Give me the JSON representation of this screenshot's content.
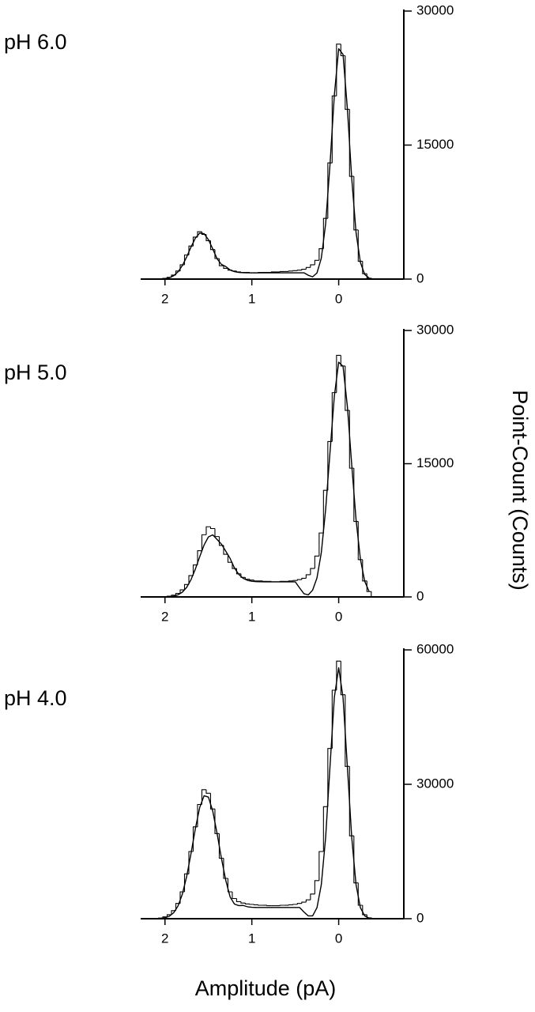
{
  "chart_data": [
    {
      "type": "line",
      "title": "pH 6.0",
      "x": [
        2.15,
        2.1,
        2.05,
        2.0,
        1.95,
        1.9,
        1.85,
        1.8,
        1.75,
        1.7,
        1.65,
        1.6,
        1.55,
        1.5,
        1.45,
        1.4,
        1.35,
        1.3,
        1.25,
        1.2,
        1.15,
        1.1,
        1.05,
        1.0,
        0.95,
        0.9,
        0.85,
        0.8,
        0.75,
        0.7,
        0.65,
        0.6,
        0.55,
        0.5,
        0.45,
        0.4,
        0.35,
        0.3,
        0.25,
        0.2,
        0.15,
        0.1,
        0.05,
        0.0,
        -0.05,
        -0.1,
        -0.15,
        -0.2,
        -0.25,
        -0.3,
        -0.35
      ],
      "series": [
        {
          "color": "#000000",
          "style": "step",
          "values": [
            0,
            10,
            30,
            80,
            200,
            450,
            900,
            1600,
            2700,
            3700,
            4700,
            5300,
            5000,
            4300,
            3300,
            2300,
            1500,
            1200,
            1000,
            900,
            800,
            750,
            750,
            700,
            700,
            750,
            750,
            750,
            800,
            800,
            850,
            850,
            900,
            950,
            1000,
            1100,
            1300,
            1600,
            2100,
            3400,
            6800,
            13000,
            20500,
            26300,
            25000,
            19000,
            11500,
            5500,
            2000,
            600,
            100
          ]
        },
        {
          "color": "#000000",
          "values": [
            1,
            5,
            19,
            58,
            159,
            382,
            811,
            1513,
            2488,
            3602,
            4588,
            5147,
            5082,
            4416,
            3379,
            2274,
            1648,
            1404,
            1022,
            831,
            746,
            715,
            704,
            700,
            700,
            700,
            700,
            700,
            700,
            700,
            700,
            700,
            700,
            700,
            700,
            704,
            428,
            257,
            687,
            2338,
            6200,
            12800,
            20590,
            25780,
            25150,
            19100,
            11300,
            5210,
            1870,
            520,
            113
          ]
        }
      ],
      "xlim": [
        2.28,
        -0.75
      ],
      "xticks": [
        2,
        1,
        0
      ],
      "ylim": [
        0,
        30000
      ],
      "yticks": [
        0,
        15000,
        30000
      ]
    },
    {
      "type": "line",
      "title": "pH 5.0",
      "ylabel": "Point-Count (Counts)",
      "x": [
        2.15,
        2.1,
        2.05,
        2.0,
        1.95,
        1.9,
        1.85,
        1.8,
        1.75,
        1.7,
        1.65,
        1.6,
        1.55,
        1.5,
        1.45,
        1.4,
        1.35,
        1.3,
        1.25,
        1.2,
        1.15,
        1.1,
        1.05,
        1.0,
        0.95,
        0.9,
        0.85,
        0.8,
        0.75,
        0.7,
        0.65,
        0.6,
        0.55,
        0.5,
        0.45,
        0.4,
        0.35,
        0.3,
        0.25,
        0.2,
        0.15,
        0.1,
        0.05,
        0.0,
        -0.05,
        -0.1,
        -0.15,
        -0.2,
        -0.25,
        -0.3,
        -0.35
      ],
      "series": [
        {
          "color": "#000000",
          "style": "step",
          "values": [
            0,
            0,
            10,
            30,
            80,
            200,
            400,
            800,
            1400,
            2400,
            3600,
            5200,
            7000,
            7900,
            7700,
            6800,
            5800,
            4800,
            3900,
            3200,
            2600,
            2200,
            2000,
            1900,
            1800,
            1800,
            1750,
            1750,
            1700,
            1700,
            1750,
            1750,
            1800,
            1850,
            1950,
            2100,
            2500,
            3200,
            4600,
            7200,
            12000,
            17500,
            23000,
            27200,
            26000,
            21000,
            14500,
            8500,
            4200,
            1800,
            600
          ]
        },
        {
          "color": "#000000",
          "values": [
            0,
            1,
            3,
            11,
            34,
            95,
            238,
            536,
            1080,
            1944,
            3142,
            4523,
            5846,
            6755,
            6985,
            6462,
            5946,
            5155,
            4327,
            3262,
            2535,
            2093,
            1866,
            1763,
            1722,
            1707,
            1702,
            1700,
            1700,
            1700,
            1700,
            1700,
            1700,
            1700,
            1013,
            359,
            233,
            764,
            2136,
            4985,
            9862,
            16267,
            22619,
            26430,
            25970,
            21467,
            14900,
            8710,
            4261,
            1763,
            611
          ]
        }
      ],
      "xlim": [
        2.28,
        -0.75
      ],
      "xticks": [
        2,
        1,
        0
      ],
      "ylim": [
        0,
        30000
      ],
      "yticks": [
        0,
        15000,
        30000
      ]
    },
    {
      "type": "line",
      "title": "pH 4.0",
      "xlabel": "Amplitude (pA)",
      "x": [
        2.15,
        2.1,
        2.05,
        2.0,
        1.95,
        1.9,
        1.85,
        1.8,
        1.75,
        1.7,
        1.65,
        1.6,
        1.55,
        1.5,
        1.45,
        1.4,
        1.35,
        1.3,
        1.25,
        1.2,
        1.15,
        1.1,
        1.05,
        1.0,
        0.95,
        0.9,
        0.85,
        0.8,
        0.75,
        0.7,
        0.65,
        0.6,
        0.55,
        0.5,
        0.45,
        0.4,
        0.35,
        0.3,
        0.25,
        0.2,
        0.15,
        0.1,
        0.05,
        0.0,
        -0.05,
        -0.1,
        -0.15,
        -0.2,
        -0.25,
        -0.3,
        -0.35
      ],
      "series": [
        {
          "color": "#000000",
          "style": "step",
          "values": [
            0,
            50,
            150,
            400,
            900,
            1800,
            3400,
            6000,
            10000,
            15000,
            20500,
            25500,
            28800,
            28000,
            24500,
            19000,
            13500,
            9000,
            6000,
            4500,
            3800,
            3500,
            3300,
            3200,
            3100,
            3000,
            3000,
            2900,
            2900,
            2900,
            3000,
            3000,
            3100,
            3200,
            3400,
            3700,
            4200,
            5500,
            8500,
            15000,
            25000,
            38000,
            51000,
            57500,
            50000,
            34000,
            18500,
            8000,
            3000,
            900,
            200
          ]
        },
        {
          "color": "#000000",
          "values": [
            5,
            20,
            68,
            204,
            549,
            1324,
            2846,
            5480,
            9446,
            14580,
            20110,
            24840,
            27450,
            27150,
            24020,
            19020,
            13480,
            8550,
            4856,
            3264,
            2919,
            2954,
            2666,
            2554,
            2516,
            2505,
            2500,
            2500,
            2500,
            2500,
            2500,
            2500,
            2500,
            2500,
            2500,
            1500,
            623,
            622,
            2459,
            7579,
            18190,
            33966,
            49420,
            56000,
            49420,
            33966,
            18190,
            7579,
            2459,
            622,
            123
          ]
        }
      ],
      "xlim": [
        2.28,
        -0.75
      ],
      "xticks": [
        2,
        1,
        0
      ],
      "ylim": [
        0,
        60000
      ],
      "yticks": [
        0,
        30000,
        60000
      ]
    }
  ]
}
